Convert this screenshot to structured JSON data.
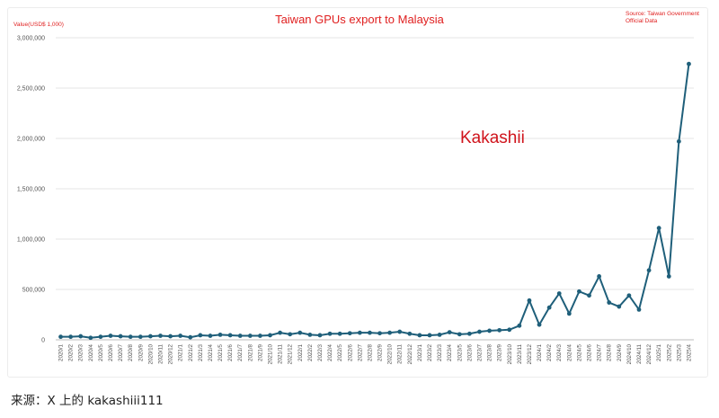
{
  "chart_data": {
    "type": "line",
    "title": "Taiwan GPUs export to Malaysia",
    "ylabel": "Value(USD$ 1,000)",
    "source": "Source: Taiwan Government\n Official Data",
    "watermark": "Kakashii",
    "ylim": [
      0,
      3000000
    ],
    "yticks": [
      "0",
      "500,000",
      "1,000,000",
      "1,500,000",
      "2,000,000",
      "2,500,000",
      "3,000,000"
    ],
    "grid": true,
    "color": "#1f5f7a",
    "x": [
      "2020/1",
      "2020/2",
      "2020/3",
      "2020/4",
      "2020/5",
      "2020/6",
      "2020/7",
      "2020/8",
      "2020/9",
      "2020/10",
      "2020/11",
      "2020/12",
      "2021/1",
      "2021/2",
      "2021/3",
      "2021/4",
      "2021/5",
      "2021/6",
      "2021/7",
      "2021/8",
      "2021/9",
      "2021/10",
      "2021/11",
      "2021/12",
      "2022/1",
      "2022/2",
      "2022/3",
      "2022/4",
      "2022/5",
      "2022/6",
      "2022/7",
      "2022/8",
      "2022/9",
      "2022/10",
      "2022/11",
      "2022/12",
      "2023/1",
      "2023/2",
      "2023/3",
      "2023/4",
      "2023/5",
      "2023/6",
      "2023/7",
      "2023/8",
      "2023/9",
      "2023/10",
      "2023/11",
      "2023/12",
      "2024/1",
      "2024/2",
      "2024/3",
      "2024/4",
      "2024/5",
      "2024/6",
      "2024/7",
      "2024/8",
      "2024/9",
      "2024/10",
      "2024/11",
      "2024/12",
      "2025/1",
      "2025/2",
      "2025/3",
      "2025/4"
    ],
    "values": [
      30000,
      30000,
      35000,
      20000,
      30000,
      40000,
      35000,
      30000,
      30000,
      35000,
      40000,
      35000,
      40000,
      25000,
      45000,
      40000,
      50000,
      45000,
      40000,
      40000,
      40000,
      45000,
      70000,
      55000,
      70000,
      50000,
      45000,
      60000,
      60000,
      65000,
      70000,
      70000,
      65000,
      70000,
      80000,
      60000,
      45000,
      45000,
      50000,
      75000,
      55000,
      60000,
      80000,
      90000,
      95000,
      100000,
      140000,
      390000,
      150000,
      320000,
      460000,
      260000,
      480000,
      440000,
      630000,
      370000,
      330000,
      440000,
      300000,
      690000,
      1110000,
      630000,
      1970000,
      2740000
    ]
  },
  "caption": "来源：X 上的 kakashiii111"
}
